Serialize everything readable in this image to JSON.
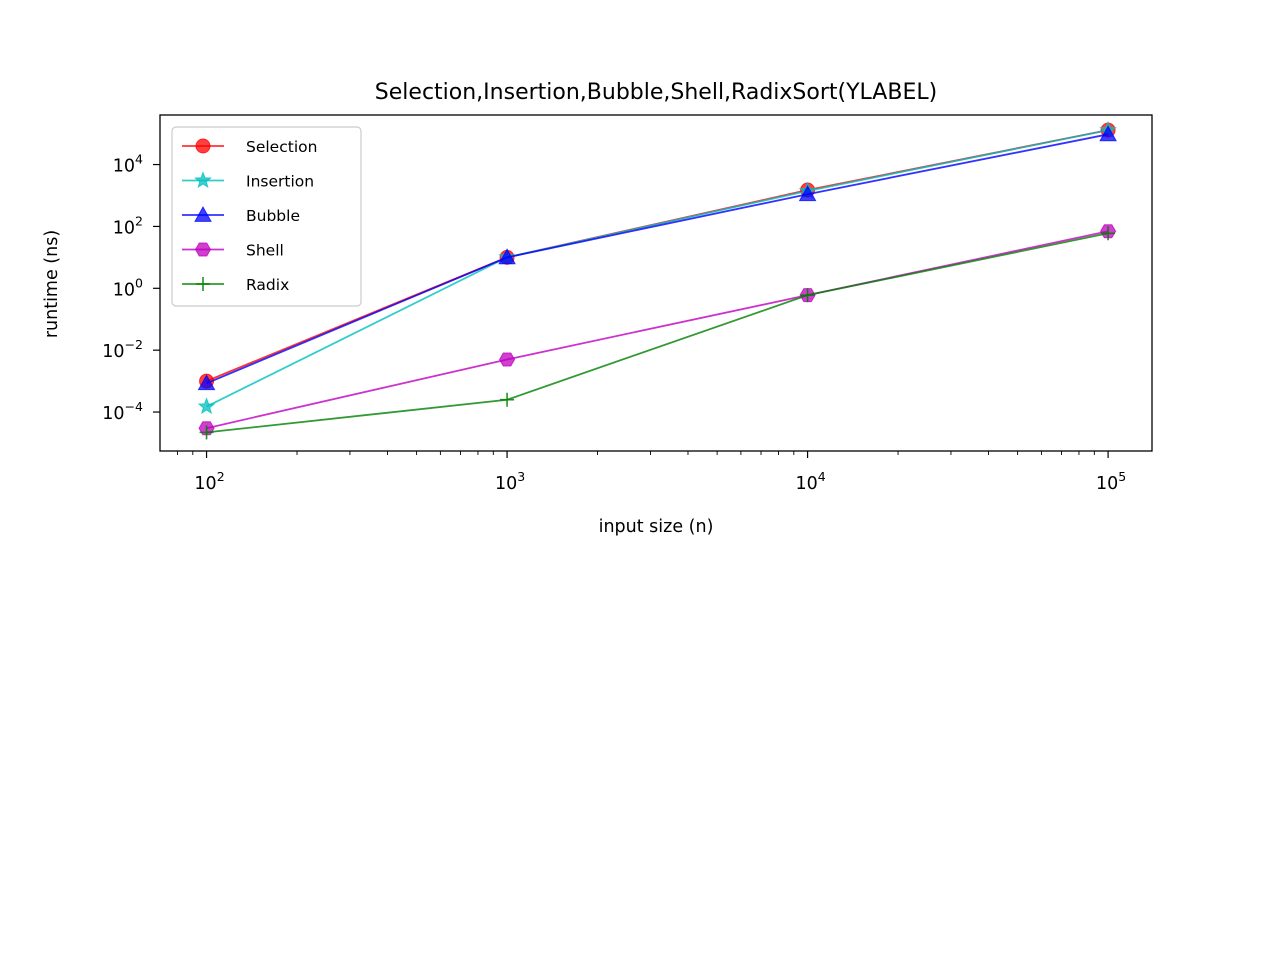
{
  "chart_data": {
    "type": "line",
    "title": "Selection,Insertion,Bubble,Shell,RadixSort(YLABEL)",
    "xlabel": "input size (n)",
    "ylabel": "runtime (ns)",
    "x_scale": "log",
    "y_scale": "log",
    "x": [
      100,
      1000,
      10000,
      100000
    ],
    "xlim": [
      70,
      140000
    ],
    "ylim": [
      5.5e-06,
      400000
    ],
    "x_ticks": [
      {
        "value": 100,
        "base": "10",
        "exp": "2"
      },
      {
        "value": 1000,
        "base": "10",
        "exp": "3"
      },
      {
        "value": 10000,
        "base": "10",
        "exp": "4"
      },
      {
        "value": 100000,
        "base": "10",
        "exp": "5"
      }
    ],
    "y_ticks": [
      {
        "value": 0.0001,
        "base": "10",
        "exp": "−4"
      },
      {
        "value": 0.01,
        "base": "10",
        "exp": "−2"
      },
      {
        "value": 1,
        "base": "10",
        "exp": "0"
      },
      {
        "value": 100,
        "base": "10",
        "exp": "2"
      },
      {
        "value": 10000,
        "base": "10",
        "exp": "4"
      }
    ],
    "grid": false,
    "legend_position": "top-left",
    "series": [
      {
        "name": "Selection",
        "color": "#ff0000",
        "marker": "circle",
        "values": [
          0.001,
          10,
          1500,
          130000
        ]
      },
      {
        "name": "Insertion",
        "color": "#00bfbf",
        "marker": "star",
        "values": [
          0.00015,
          10,
          1400,
          130000
        ]
      },
      {
        "name": "Bubble",
        "color": "#0000ff",
        "marker": "triangle-up",
        "values": [
          0.00085,
          10,
          1100,
          95000
        ]
      },
      {
        "name": "Shell",
        "color": "#bf00bf",
        "marker": "hexagon",
        "values": [
          3e-05,
          0.005,
          0.6,
          70
        ]
      },
      {
        "name": "Radix",
        "color": "#008000",
        "marker": "plus",
        "values": [
          2.2e-05,
          0.00025,
          0.6,
          60
        ]
      }
    ]
  }
}
